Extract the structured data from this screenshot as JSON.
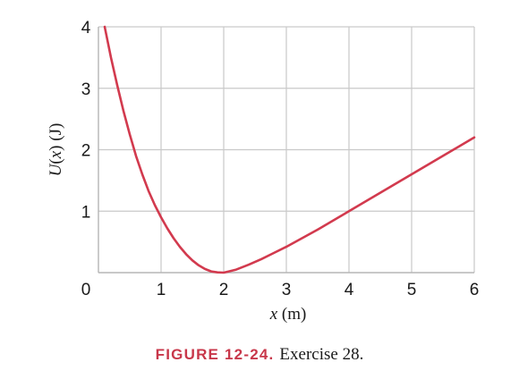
{
  "chart_data": {
    "type": "line",
    "xlabel": {
      "var": "x",
      "unit": " (m)"
    },
    "ylabel": {
      "func": "U",
      "var": "x",
      "unit": " (J)"
    },
    "xlim": [
      0,
      6
    ],
    "ylim": [
      0,
      4
    ],
    "xticks": [
      "0",
      "1",
      "2",
      "3",
      "4",
      "5",
      "6"
    ],
    "yticks": [
      "1",
      "2",
      "3",
      "4"
    ],
    "grid": true,
    "series": [
      {
        "color": "#d23a4e",
        "x": [
          0.1,
          0.2,
          0.3,
          0.4,
          0.5,
          0.6,
          0.7,
          0.8,
          0.9,
          1.0,
          1.1,
          1.2,
          1.3,
          1.4,
          1.5,
          1.6,
          1.7,
          1.8,
          1.9,
          2.0,
          2.2,
          2.4,
          2.6,
          2.8,
          3.0,
          3.5,
          4.0,
          4.5,
          5.0,
          5.5,
          6.0
        ],
        "y": [
          4.0,
          3.5,
          3.05,
          2.63,
          2.25,
          1.9,
          1.6,
          1.33,
          1.1,
          0.9,
          0.72,
          0.56,
          0.42,
          0.3,
          0.2,
          0.12,
          0.06,
          0.02,
          0.005,
          0.0,
          0.05,
          0.13,
          0.22,
          0.32,
          0.42,
          0.7,
          1.0,
          1.3,
          1.6,
          1.9,
          2.2
        ]
      }
    ]
  },
  "caption": {
    "figure": "FIGURE 12-24.",
    "text": "Exercise 28."
  }
}
